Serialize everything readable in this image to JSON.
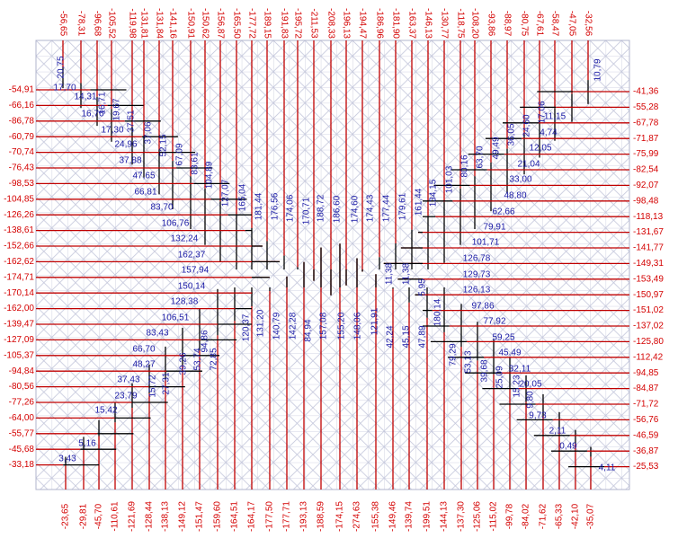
{
  "top_labels": [
    "-56,65",
    "-78,31",
    "-96,68",
    "-105,52",
    "-119,98",
    "-131,81",
    "-131,84",
    "-141,16",
    "-150,91",
    "-150,62",
    "-156,87",
    "-165,50",
    "-177,72",
    "-189,15",
    "-191,83",
    "-195,72",
    "-211,53",
    "-208,33",
    "-196,13",
    "-194,47",
    "-186,96",
    "-181,90",
    "-163,37",
    "-146,13",
    "-130,77",
    "-118,75",
    "-108,20",
    "-93,86",
    "-88,97",
    "-80,75",
    "-67,61",
    "-58,47",
    "-47,05",
    "-32,56"
  ],
  "bottom_labels": [
    "-23,65",
    "-29,81",
    "-45,70",
    "-110,61",
    "-121,69",
    "-128,44",
    "-138,13",
    "-149,12",
    "-151,47",
    "-159,60",
    "-164,51",
    "-164,17",
    "-177,50",
    "-177,71",
    "-193,13",
    "-188,59",
    "-174,15",
    "-274,63",
    "-155,38",
    "-149,46",
    "-139,74",
    "-199,51",
    "-144,13",
    "-137,30",
    "-125,06",
    "-115,02",
    "-99,78",
    "-84,02",
    "-71,62",
    "-65,33",
    "-42,10",
    "-35,07"
  ],
  "left_labels": [
    "-54,91",
    "-66,16",
    "-86,78",
    "-60,79",
    "-70,74",
    "-76,43",
    "-98,53",
    "-104,85",
    "-126,26",
    "-138,61",
    "-152,66",
    "-162,62",
    "-174,71",
    "-170,14",
    "-162,00",
    "-139,47",
    "-127,09",
    "-105,37",
    "-94,84",
    "-80,56",
    "-77,26",
    "-64,00",
    "-55,77",
    "-45,68",
    "-33,18"
  ],
  "right_labels": [
    "-41,36",
    "-55,28",
    "-67,78",
    "-71,87",
    "-75,99",
    "-82,54",
    "-92,07",
    "-98,48",
    "-118,13",
    "-131,67",
    "-141,77",
    "-149,31",
    "-153,49",
    "-150,97",
    "-151,02",
    "-137,02",
    "-125,80",
    "-112,42",
    "-94,85",
    "-84,87",
    "-71,72",
    "-56,76",
    "-46,59",
    "-36,87",
    "-25,53"
  ],
  "member_labels": [
    "17,70",
    "14,31",
    "16,76",
    "17,30",
    "24,96",
    "37,88",
    "47,65",
    "66,81",
    "83,70",
    "106,76",
    "132,24",
    "162,37",
    "157,94",
    "150,14",
    "128,38",
    "106,51",
    "83,43",
    "66,70",
    "48,27",
    "37,43",
    "23,79",
    "15,42",
    "5,16",
    "3,43",
    "20,75",
    "16,71",
    "19,67",
    "37,51",
    "37,06",
    "52,15",
    "67,09",
    "83,61",
    "104,89",
    "127,07",
    "165,04",
    "181,44",
    "176,56",
    "174,06",
    "170,71",
    "188,72",
    "186,60",
    "174,60",
    "174,43",
    "177,44",
    "179,61",
    "161,44",
    "134,15",
    "101,03",
    "80,16",
    "63,70",
    "49,49",
    "36,05",
    "24,60",
    "17,06",
    "10,79",
    "11,15",
    "4,74",
    "12,05",
    "21,04",
    "33,00",
    "48,80",
    "62,66",
    "79,91",
    "101,71",
    "126,78",
    "129,73",
    "126,13",
    "97,86",
    "77,92",
    "59,25",
    "45,49",
    "32,11",
    "20,05",
    "9,73",
    "2,11",
    "0,49",
    "4,11",
    "120,37",
    "131,20",
    "140,79",
    "142,28",
    "84,94",
    "157,08",
    "155,20",
    "148,06",
    "121,91",
    "11,38",
    "11,38",
    "5,95",
    "180,14",
    "79,29",
    "53,13",
    "39,68",
    "25,09",
    "15,23",
    "9,80",
    "94,86",
    "72,85",
    "53,74",
    "39,26",
    "27,31",
    "15,72",
    "42,24",
    "45,15",
    "47,89"
  ]
}
